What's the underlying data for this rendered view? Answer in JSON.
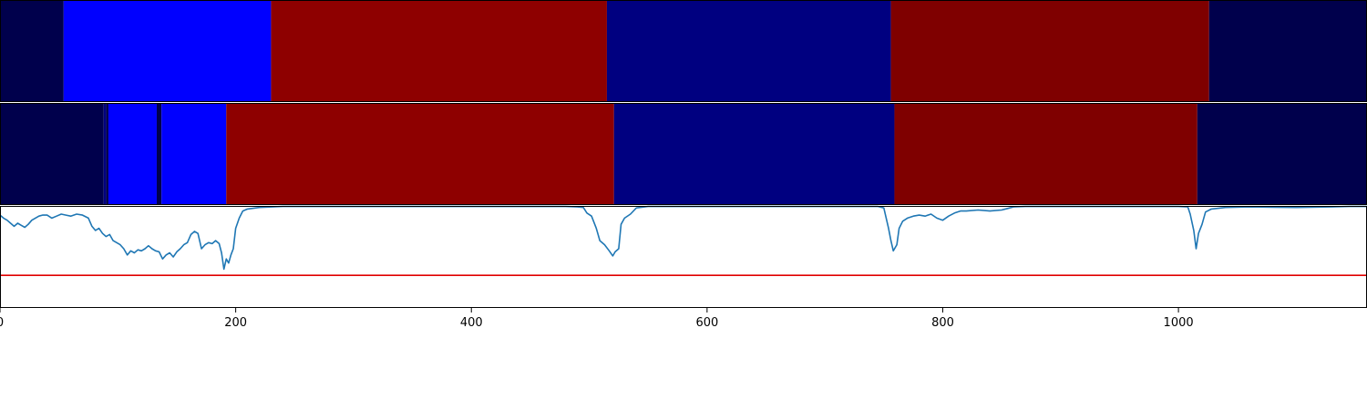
{
  "chart_data": {
    "type": "segmentation-timeline",
    "x_range": [
      0,
      1160
    ],
    "x_ticks": [
      "0",
      "200",
      "400",
      "600",
      "800",
      "1000"
    ],
    "x_tick_values": [
      0,
      200,
      400,
      600,
      800,
      1000
    ],
    "tracks": [
      {
        "role": "ground_truth",
        "segments": [
          {
            "start": 0,
            "end": 54,
            "color": "#00004c"
          },
          {
            "start": 54,
            "end": 230,
            "color": "#0000ff"
          },
          {
            "start": 230,
            "end": 515,
            "color": "#8e0000"
          },
          {
            "start": 515,
            "end": 756,
            "color": "#000080"
          },
          {
            "start": 756,
            "end": 1026,
            "color": "#7f0000"
          },
          {
            "start": 1026,
            "end": 1160,
            "color": "#00004c"
          }
        ]
      },
      {
        "role": "prediction",
        "segments": [
          {
            "start": 0,
            "end": 88,
            "color": "#00004c"
          },
          {
            "start": 88,
            "end": 90,
            "color": "#000080"
          },
          {
            "start": 90,
            "end": 92,
            "color": "#00004c"
          },
          {
            "start": 92,
            "end": 133,
            "color": "#0000ff"
          },
          {
            "start": 133,
            "end": 137,
            "color": "#00004c"
          },
          {
            "start": 137,
            "end": 192,
            "color": "#0000ff"
          },
          {
            "start": 192,
            "end": 521,
            "color": "#8e0000"
          },
          {
            "start": 521,
            "end": 759,
            "color": "#000080"
          },
          {
            "start": 759,
            "end": 1016,
            "color": "#7f0000"
          },
          {
            "start": 1016,
            "end": 1160,
            "color": "#00004c"
          }
        ]
      }
    ],
    "confidence": {
      "ylim": [
        0,
        1
      ],
      "threshold": 0.32,
      "line_color": "#1f77b4",
      "threshold_color": "#e00000",
      "points": [
        [
          0,
          0.91
        ],
        [
          3,
          0.88
        ],
        [
          6,
          0.86
        ],
        [
          9,
          0.83
        ],
        [
          12,
          0.8
        ],
        [
          15,
          0.83
        ],
        [
          18,
          0.81
        ],
        [
          21,
          0.79
        ],
        [
          24,
          0.82
        ],
        [
          27,
          0.86
        ],
        [
          30,
          0.88
        ],
        [
          33,
          0.9
        ],
        [
          36,
          0.91
        ],
        [
          40,
          0.91
        ],
        [
          44,
          0.88
        ],
        [
          48,
          0.9
        ],
        [
          52,
          0.92
        ],
        [
          56,
          0.91
        ],
        [
          60,
          0.9
        ],
        [
          65,
          0.92
        ],
        [
          70,
          0.91
        ],
        [
          75,
          0.88
        ],
        [
          78,
          0.8
        ],
        [
          81,
          0.76
        ],
        [
          84,
          0.78
        ],
        [
          87,
          0.73
        ],
        [
          90,
          0.7
        ],
        [
          93,
          0.72
        ],
        [
          96,
          0.66
        ],
        [
          99,
          0.64
        ],
        [
          102,
          0.62
        ],
        [
          105,
          0.58
        ],
        [
          108,
          0.52
        ],
        [
          111,
          0.56
        ],
        [
          114,
          0.54
        ],
        [
          117,
          0.57
        ],
        [
          120,
          0.56
        ],
        [
          123,
          0.58
        ],
        [
          126,
          0.61
        ],
        [
          129,
          0.58
        ],
        [
          132,
          0.56
        ],
        [
          135,
          0.55
        ],
        [
          138,
          0.48
        ],
        [
          141,
          0.52
        ],
        [
          144,
          0.54
        ],
        [
          147,
          0.5
        ],
        [
          150,
          0.55
        ],
        [
          153,
          0.58
        ],
        [
          156,
          0.62
        ],
        [
          159,
          0.64
        ],
        [
          162,
          0.72
        ],
        [
          165,
          0.75
        ],
        [
          168,
          0.73
        ],
        [
          171,
          0.58
        ],
        [
          174,
          0.62
        ],
        [
          177,
          0.64
        ],
        [
          180,
          0.63
        ],
        [
          183,
          0.66
        ],
        [
          186,
          0.63
        ],
        [
          188,
          0.54
        ],
        [
          190,
          0.38
        ],
        [
          192,
          0.48
        ],
        [
          194,
          0.44
        ],
        [
          196,
          0.52
        ],
        [
          198,
          0.58
        ],
        [
          200,
          0.78
        ],
        [
          203,
          0.88
        ],
        [
          206,
          0.95
        ],
        [
          210,
          0.97
        ],
        [
          220,
          0.985
        ],
        [
          240,
          0.995
        ],
        [
          300,
          0.995
        ],
        [
          400,
          0.995
        ],
        [
          480,
          0.995
        ],
        [
          490,
          0.99
        ],
        [
          495,
          0.985
        ],
        [
          498,
          0.93
        ],
        [
          502,
          0.9
        ],
        [
          506,
          0.78
        ],
        [
          509,
          0.66
        ],
        [
          513,
          0.62
        ],
        [
          517,
          0.56
        ],
        [
          520,
          0.51
        ],
        [
          522,
          0.55
        ],
        [
          525,
          0.58
        ],
        [
          527,
          0.82
        ],
        [
          530,
          0.88
        ],
        [
          535,
          0.92
        ],
        [
          540,
          0.98
        ],
        [
          550,
          0.995
        ],
        [
          600,
          0.995
        ],
        [
          700,
          0.995
        ],
        [
          745,
          0.995
        ],
        [
          750,
          0.98
        ],
        [
          754,
          0.78
        ],
        [
          756,
          0.66
        ],
        [
          758,
          0.56
        ],
        [
          761,
          0.62
        ],
        [
          763,
          0.78
        ],
        [
          766,
          0.85
        ],
        [
          770,
          0.88
        ],
        [
          775,
          0.9
        ],
        [
          780,
          0.91
        ],
        [
          785,
          0.9
        ],
        [
          790,
          0.92
        ],
        [
          795,
          0.88
        ],
        [
          800,
          0.86
        ],
        [
          805,
          0.9
        ],
        [
          810,
          0.93
        ],
        [
          815,
          0.95
        ],
        [
          820,
          0.95
        ],
        [
          830,
          0.96
        ],
        [
          840,
          0.95
        ],
        [
          850,
          0.96
        ],
        [
          855,
          0.975
        ],
        [
          860,
          0.99
        ],
        [
          870,
          0.995
        ],
        [
          950,
          0.995
        ],
        [
          1000,
          0.995
        ],
        [
          1008,
          0.99
        ],
        [
          1010,
          0.92
        ],
        [
          1013,
          0.76
        ],
        [
          1015,
          0.58
        ],
        [
          1017,
          0.73
        ],
        [
          1020,
          0.82
        ],
        [
          1023,
          0.94
        ],
        [
          1028,
          0.97
        ],
        [
          1040,
          0.985
        ],
        [
          1060,
          0.99
        ],
        [
          1100,
          0.985
        ],
        [
          1130,
          0.99
        ],
        [
          1145,
          0.995
        ],
        [
          1160,
          0.995
        ]
      ]
    }
  }
}
